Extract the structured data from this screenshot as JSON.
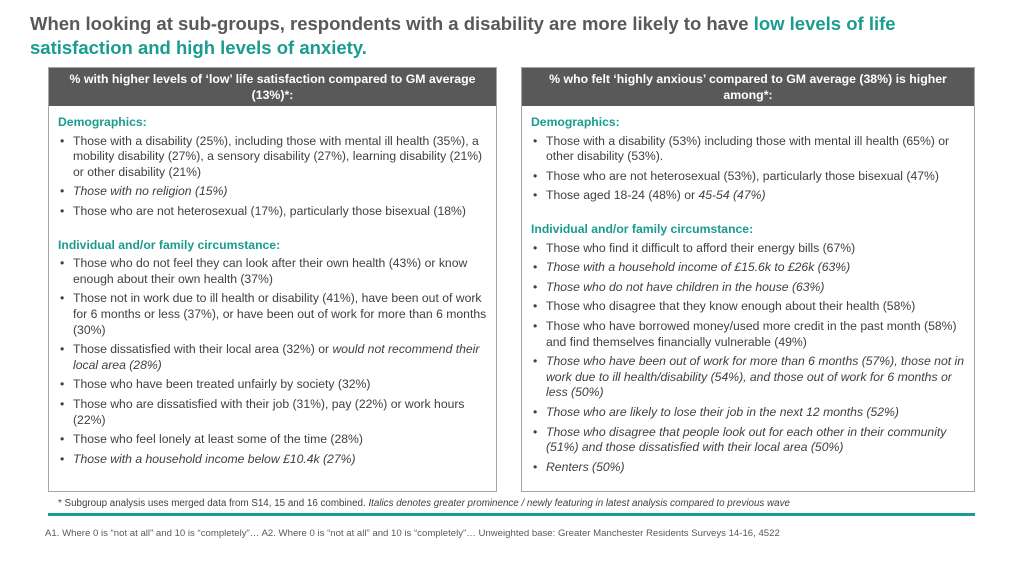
{
  "title": {
    "part1": "When looking at sub-groups, respondents with a disability are more likely to have ",
    "highlight1": "low levels of life satisfaction and high levels of anxiety."
  },
  "left_panel": {
    "header": "% with higher levels of ‘low’ life satisfaction compared to GM average (13%)*:",
    "demographics_title": "Demographics:",
    "demographics": [
      {
        "text": "Those with a disability (25%), including those with mental ill health (35%), a mobility disability (27%), a sensory disability (27%), learning disability (21%) or other disability (21%)"
      },
      {
        "italic": "Those with no religion (15%)"
      },
      {
        "text": "Those who are not heterosexual (17%), particularly those bisexual (18%)"
      }
    ],
    "circumstance_title": "Individual and/or family circumstance:",
    "circumstance": [
      {
        "text": "Those who do not feel they can look after their own health (43%) or know enough about their own health (37%)"
      },
      {
        "text": "Those not in work due to ill health or disability (41%), have been out of work for 6 months or less (37%), or have been out of work for more than 6 months (30%)"
      },
      {
        "text": "Those dissatisfied with their local area (32%) or ",
        "italic": "would not recommend their local area (28%)"
      },
      {
        "text": "Those who have been treated unfairly by society (32%)"
      },
      {
        "text": "Those who are dissatisfied with their job (31%), pay (22%) or work hours (22%)"
      },
      {
        "text": "Those who feel lonely at least some of the time (28%)"
      },
      {
        "italic": "Those with a household income below £10.4k (27%)"
      }
    ]
  },
  "right_panel": {
    "header": "% who felt ‘highly anxious’ compared to GM average (38%) is higher among*:",
    "demographics_title": "Demographics:",
    "demographics": [
      {
        "text": "Those with a disability (53%) including those with mental ill health (65%) or other disability (53%)."
      },
      {
        "text": "Those who are not heterosexual (53%), particularly those bisexual (47%)"
      },
      {
        "text": "Those aged 18-24 (48%) or ",
        "italic": "45-54 (47%)"
      }
    ],
    "circumstance_title": "Individual and/or family circumstance:",
    "circumstance": [
      {
        "text": "Those who find it difficult to afford their energy bills (67%)"
      },
      {
        "italic": "Those with a household income of £15.6k to £26k (63%)"
      },
      {
        "italic": "Those who do not have children in the house (63%)"
      },
      {
        "text": "Those who disagree that they know enough about their health (58%)"
      },
      {
        "text": "Those who have borrowed money/used more credit in the past month (58%) and find themselves financially vulnerable (49%)"
      },
      {
        "italic": "Those who have been out of work for more than 6 months (57%), those not in work due to ill health/disability (54%), and those out of work for 6 months or less (50%)"
      },
      {
        "italic": "Those who are likely to lose their job in the next 12 months (52%)"
      },
      {
        "italic": "Those who disagree that people look out for each other in their community (51%) and those dissatisfied with their local area (50%)"
      },
      {
        "italic": "Renters (50%)"
      }
    ]
  },
  "footnote": {
    "normal": "* Subgroup analysis uses merged data from S14, 15 and 16 combined. ",
    "italic": "Italics denotes greater prominence / newly featuring in latest analysis compared to previous wave"
  },
  "source": "A1. Where 0 is “not at all” and 10 is “completely”…  A2. Where 0 is “not at all” and 10 is “completely”…  Unweighted base: Greater Manchester Residents Surveys 14-16, 4522",
  "colors": {
    "accent": "#1a9c8f",
    "header_bg": "#595959",
    "title_text": "#595959"
  }
}
